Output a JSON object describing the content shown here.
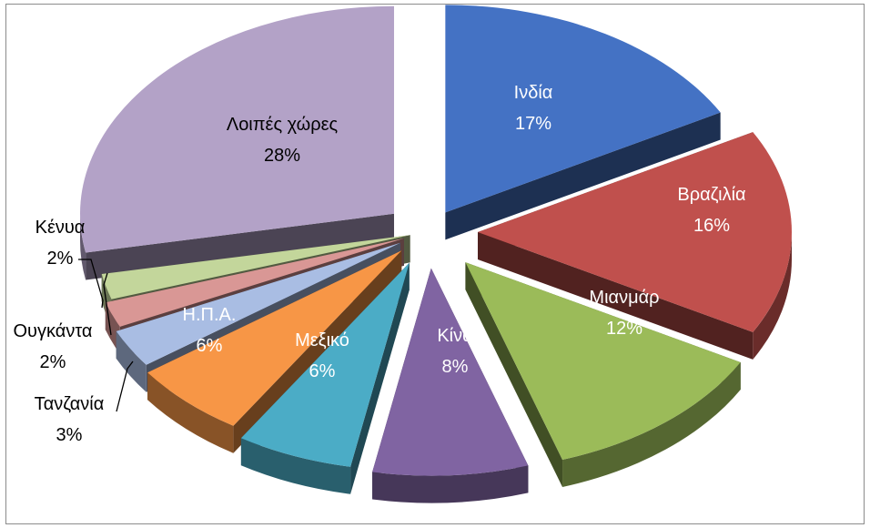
{
  "chart_data": {
    "type": "pie",
    "title": "",
    "style": "exploded-3d",
    "slices": [
      {
        "label": "Ινδία",
        "percent": "17%",
        "value": 17,
        "color": "#4472c4",
        "label_color": "#ffffff"
      },
      {
        "label": "Βραζιλία",
        "percent": "16%",
        "value": 16,
        "color": "#c0504d",
        "label_color": "#ffffff"
      },
      {
        "label": "Μιανμάρ",
        "percent": "12%",
        "value": 12,
        "color": "#9bbb59",
        "label_color": "#ffffff"
      },
      {
        "label": "Κίνα",
        "percent": "8%",
        "value": 8,
        "color": "#8064a2",
        "label_color": "#ffffff"
      },
      {
        "label": "Μεξικό",
        "percent": "6%",
        "value": 6,
        "color": "#4bacc6",
        "label_color": "#ffffff"
      },
      {
        "label": "Η.Π.Α.",
        "percent": "6%",
        "value": 6,
        "color": "#f79646",
        "label_color": "#ffffff"
      },
      {
        "label": "Τανζανία",
        "percent": "3%",
        "value": 3,
        "color": "#a9bde3",
        "label_color": "#000000"
      },
      {
        "label": "Ουγκάντα",
        "percent": "2%",
        "value": 2,
        "color": "#d99795",
        "label_color": "#000000"
      },
      {
        "label": "Κένυα",
        "percent": "2%",
        "value": 2,
        "color": "#c3d69b",
        "label_color": "#000000"
      },
      {
        "label": "Λοιπές χώρες",
        "percent": "28%",
        "value": 28,
        "color": "#b3a2c7",
        "label_color": "#000000"
      }
    ]
  }
}
